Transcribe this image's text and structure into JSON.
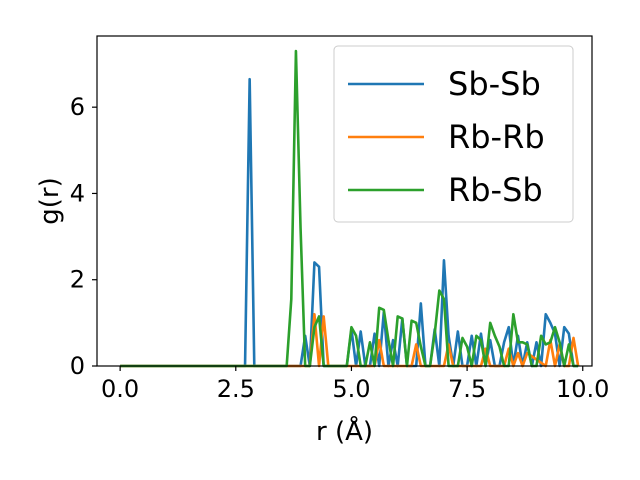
{
  "chart_data": {
    "type": "line",
    "title": "",
    "xlabel": "r (Å)",
    "ylabel": "g(r)",
    "xlim": [
      -0.5,
      10.2
    ],
    "ylim": [
      0,
      7.65
    ],
    "xticks": [
      0.0,
      2.5,
      5.0,
      7.5,
      10.0
    ],
    "xtick_labels": [
      "0.0",
      "2.5",
      "5.0",
      "7.5",
      "10.0"
    ],
    "yticks": [
      0,
      2,
      4,
      6
    ],
    "ytick_labels": [
      "0",
      "2",
      "4",
      "6"
    ],
    "grid": false,
    "legend_position": "top-right",
    "series": [
      {
        "name": "Sb-Sb",
        "color": "#1f77b4",
        "x": [
          0.0,
          2.7,
          2.8,
          2.9,
          3.0,
          3.1,
          3.7,
          3.8,
          3.9,
          4.0,
          4.1,
          4.2,
          4.3,
          4.4,
          4.5,
          4.6,
          4.7,
          4.8,
          4.9,
          5.0,
          5.1,
          5.2,
          5.3,
          5.4,
          5.5,
          5.6,
          5.7,
          5.8,
          5.9,
          6.0,
          6.1,
          6.2,
          6.3,
          6.4,
          6.5,
          6.6,
          6.7,
          6.8,
          6.9,
          7.0,
          7.1,
          7.2,
          7.3,
          7.4,
          7.5,
          7.6,
          7.7,
          7.8,
          7.9,
          8.0,
          8.1,
          8.2,
          8.3,
          8.4,
          8.5,
          8.6,
          8.7,
          8.8,
          8.9,
          9.0,
          9.1,
          9.2,
          9.3,
          9.4,
          9.5,
          9.6,
          9.7,
          9.8,
          9.9
        ],
        "y": [
          0.0,
          0.0,
          6.65,
          0.0,
          0.0,
          0.0,
          0.0,
          0.0,
          0.0,
          0.7,
          0.0,
          2.4,
          2.3,
          0.0,
          0.0,
          0.0,
          0.0,
          0.0,
          0.0,
          0.85,
          0.0,
          0.8,
          0.0,
          0.0,
          0.75,
          0.0,
          1.25,
          0.0,
          0.6,
          0.0,
          1.1,
          0.0,
          0.0,
          0.0,
          1.45,
          0.0,
          0.0,
          0.85,
          0.0,
          2.45,
          0.7,
          0.0,
          0.8,
          0.0,
          0.0,
          0.7,
          0.0,
          0.75,
          0.0,
          0.6,
          0.0,
          0.0,
          0.55,
          0.9,
          0.0,
          0.7,
          0.0,
          0.55,
          0.0,
          0.55,
          0.0,
          1.2,
          1.0,
          0.75,
          0.0,
          0.9,
          0.75,
          0.0,
          0.0
        ]
      },
      {
        "name": "Rb-Rb",
        "color": "#ff7f0e",
        "x": [
          0.0,
          4.1,
          4.2,
          4.3,
          4.4,
          4.5,
          5.5,
          5.6,
          5.7,
          6.3,
          6.4,
          6.5,
          7.0,
          7.1,
          7.2,
          7.8,
          7.9,
          8.0,
          8.3,
          8.4,
          8.5,
          8.6,
          8.7,
          8.8,
          9.2,
          9.3,
          9.4,
          9.5,
          9.6,
          9.7,
          9.8,
          9.9
        ],
        "y": [
          0.0,
          0.0,
          1.2,
          0.0,
          1.15,
          0.0,
          0.0,
          0.6,
          0.0,
          0.0,
          0.5,
          0.0,
          0.0,
          0.5,
          0.0,
          0.0,
          0.4,
          0.0,
          0.0,
          0.4,
          0.0,
          0.3,
          0.0,
          0.3,
          0.0,
          0.6,
          0.0,
          0.5,
          0.0,
          0.0,
          0.65,
          0.0
        ]
      },
      {
        "name": "Rb-Sb",
        "color": "#2ca02c",
        "x": [
          0.0,
          3.6,
          3.7,
          3.8,
          3.9,
          4.0,
          4.1,
          4.2,
          4.3,
          4.4,
          4.7,
          4.8,
          4.9,
          5.0,
          5.1,
          5.2,
          5.3,
          5.4,
          5.5,
          5.6,
          5.7,
          5.8,
          5.9,
          6.0,
          6.1,
          6.2,
          6.3,
          6.4,
          6.5,
          6.6,
          6.7,
          6.8,
          6.9,
          7.0,
          7.1,
          7.2,
          7.3,
          7.4,
          7.5,
          7.6,
          7.7,
          7.8,
          7.9,
          8.0,
          8.1,
          8.2,
          8.3,
          8.4,
          8.5,
          8.6,
          8.7,
          8.8,
          8.9,
          9.0,
          9.1,
          9.2,
          9.3,
          9.4,
          9.5,
          9.6,
          9.7,
          9.8,
          9.9
        ],
        "y": [
          0.0,
          0.0,
          1.55,
          7.3,
          3.2,
          0.0,
          0.0,
          0.9,
          1.15,
          0.0,
          0.0,
          0.0,
          0.0,
          0.9,
          0.7,
          0.0,
          0.0,
          0.55,
          0.0,
          1.35,
          1.3,
          0.6,
          0.0,
          1.15,
          1.1,
          0.0,
          1.05,
          1.0,
          0.45,
          0.0,
          0.0,
          0.75,
          1.75,
          1.55,
          0.0,
          0.0,
          0.0,
          0.65,
          0.45,
          0.0,
          0.7,
          0.6,
          0.0,
          1.0,
          0.7,
          0.45,
          0.0,
          0.0,
          1.2,
          0.55,
          0.55,
          0.5,
          0.0,
          0.0,
          0.7,
          0.5,
          0.55,
          0.9,
          0.55,
          0.0,
          0.5,
          0.0,
          0.0
        ]
      }
    ]
  }
}
